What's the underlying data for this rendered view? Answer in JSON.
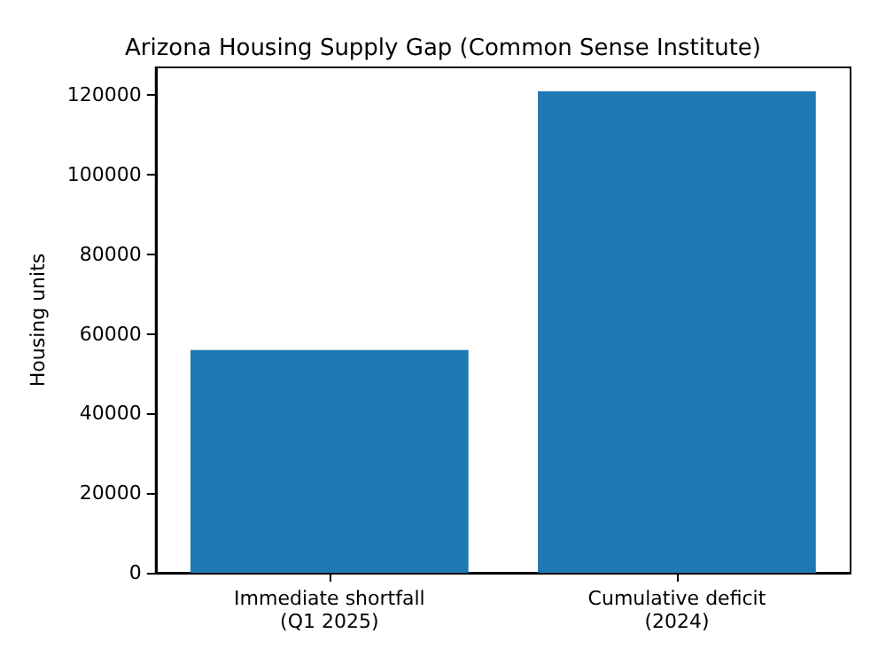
{
  "chart_data": {
    "type": "bar",
    "title": "Arizona Housing Supply Gap (Common Sense Institute)",
    "ylabel": "Housing units",
    "categories": [
      "Immediate shortfall\n(Q1 2025)",
      "Cumulative deficit\n(2024)"
    ],
    "values": [
      56000,
      121000
    ],
    "color": "#1f77b4",
    "ylim": [
      0,
      127000
    ],
    "yticks": [
      0,
      20000,
      40000,
      60000,
      80000,
      100000,
      120000
    ],
    "grid": false
  }
}
